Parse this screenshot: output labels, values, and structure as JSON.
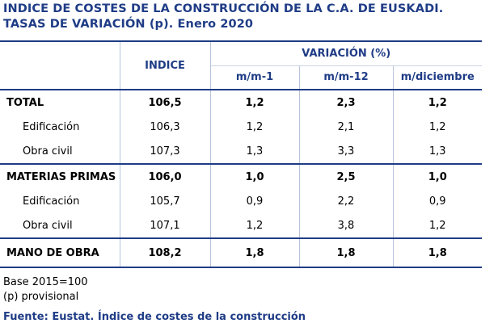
{
  "title": {
    "line1": "INDICE DE COSTES DE LA CONSTRUCCIÓN DE LA C.A. DE EUSKADI.",
    "line2": "TASAS DE VARIACIÓN (p). Enero 2020"
  },
  "table": {
    "header_indice": "INDICE",
    "header_variacion": "VARIACIÓN (%)",
    "sub_headers": [
      "m/m-1",
      "m/m-12",
      "m/diciembre"
    ],
    "rows": [
      {
        "label": "TOTAL",
        "indice": "106,5",
        "mm1": "1,2",
        "mm12": "2,3",
        "mdic": "1,2"
      },
      {
        "label": "Edificación",
        "indice": "106,3",
        "mm1": "1,2",
        "mm12": "2,1",
        "mdic": "1,2"
      },
      {
        "label": "Obra civil",
        "indice": "107,3",
        "mm1": "1,3",
        "mm12": "3,3",
        "mdic": "1,3"
      },
      {
        "label": "MATERIAS PRIMAS",
        "indice": "106,0",
        "mm1": "1,0",
        "mm12": "2,5",
        "mdic": "1,0"
      },
      {
        "label": "Edificación",
        "indice": "105,7",
        "mm1": "0,9",
        "mm12": "2,2",
        "mdic": "0,9"
      },
      {
        "label": "Obra civil",
        "indice": "107,1",
        "mm1": "1,2",
        "mm12": "3,8",
        "mdic": "1,2"
      },
      {
        "label": "MANO DE OBRA",
        "indice": "108,2",
        "mm1": "1,8",
        "mm12": "1,8",
        "mdic": "1,8"
      }
    ]
  },
  "notes": {
    "base": "Base 2015=100",
    "provisional": "(p) provisional",
    "source": "Fuente: Eustat. Índice de costes de la construcción"
  },
  "colors": {
    "accent": "#1f3c86",
    "grid": "#b8c4da"
  }
}
